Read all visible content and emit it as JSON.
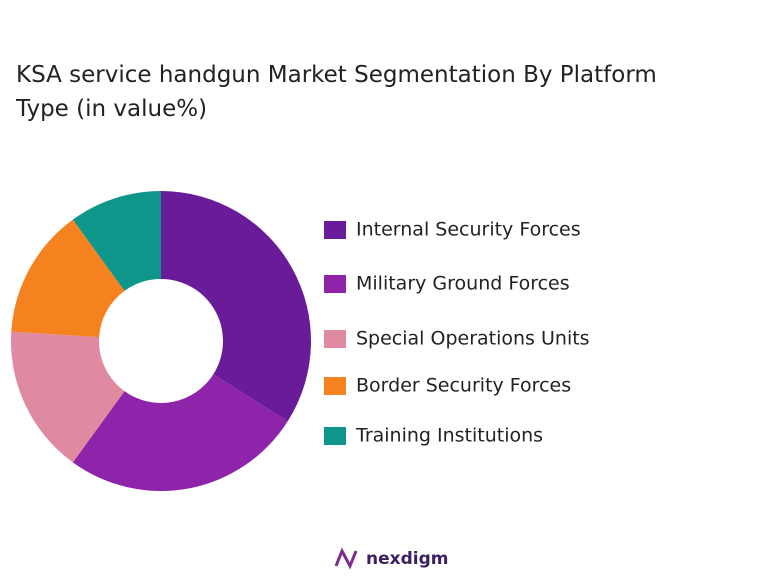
{
  "chart_data": {
    "type": "donut",
    "title": "KSA service handgun Market Segmentation By Platform Type (in value%)",
    "categories": [
      "Internal Security Forces",
      "Military Ground Forces",
      "Special Operations Units",
      "Border Security Forces",
      "Training Institutions"
    ],
    "values": [
      34,
      26,
      16,
      14,
      10
    ],
    "colors": [
      "#6a1b9a",
      "#8e24aa",
      "#e08aa2",
      "#f5821f",
      "#0e968a"
    ]
  },
  "brand": "nexdigm"
}
